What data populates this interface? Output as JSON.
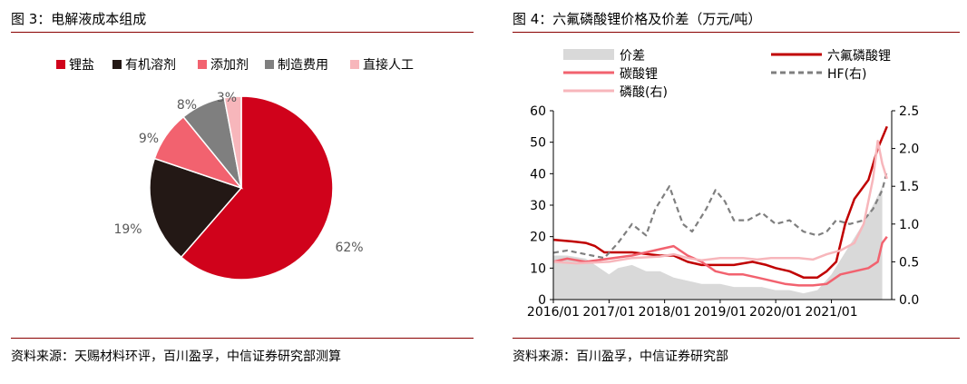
{
  "left": {
    "title": "图 3：电解液成本组成",
    "source": "资料来源：天赐材料环评，百川盈孚，中信证券研究部测算",
    "chart_data": {
      "type": "pie",
      "slices": [
        {
          "name": "锂盐",
          "value": 62,
          "label": "62%",
          "color": "#d0021b"
        },
        {
          "name": "有机溶剂",
          "value": 19,
          "label": "19%",
          "color": "#231815"
        },
        {
          "name": "添加剂",
          "value": 9,
          "label": "9%",
          "color": "#f2626f"
        },
        {
          "name": "制造费用",
          "value": 8,
          "label": "8%",
          "color": "#7f7f7f"
        },
        {
          "name": "直接人工",
          "value": 3,
          "label": "3%",
          "color": "#f7b6bb"
        }
      ],
      "legend_position": "top",
      "start": "top, clockwise"
    }
  },
  "right": {
    "title": "图 4：六氟磷酸锂价格及价差（万元/吨）",
    "source": "资料来源：百川盈孚，中信证券研究部",
    "chart_data": {
      "type": "line",
      "x_ticks": [
        "2016/01",
        "2017/01",
        "2018/01",
        "2019/01",
        "2020/01",
        "2021/01"
      ],
      "y_left": {
        "ticks": [
          "0",
          "10",
          "20",
          "30",
          "40",
          "50",
          "60"
        ],
        "lim": [
          0,
          60
        ]
      },
      "y_right": {
        "ticks": [
          "0.0",
          "0.5",
          "1.0",
          "1.5",
          "2.0",
          "2.5"
        ],
        "lim": [
          0,
          2.5
        ]
      },
      "legend": [
        "价差",
        "六氟磷酸锂",
        "碳酸锂",
        "HF(右)",
        "磷酸(右)"
      ],
      "series": [
        {
          "name": "价差",
          "kind": "area",
          "axis": "left",
          "color": "#d9d9d9",
          "points": [
            [
              "2016-01-01",
              14
            ],
            [
              "2016-04-01",
              14
            ],
            [
              "2016-08-01",
              13
            ],
            [
              "2017-01-01",
              8
            ],
            [
              "2017-03-01",
              10
            ],
            [
              "2017-06-01",
              11
            ],
            [
              "2017-09-01",
              9
            ],
            [
              "2017-12-01",
              9
            ],
            [
              "2018-03-01",
              7
            ],
            [
              "2018-06-01",
              6
            ],
            [
              "2018-09-01",
              5
            ],
            [
              "2019-01-01",
              5
            ],
            [
              "2019-04-01",
              4
            ],
            [
              "2019-07-01",
              4
            ],
            [
              "2019-10-01",
              4
            ],
            [
              "2020-01-01",
              3
            ],
            [
              "2020-04-01",
              3
            ],
            [
              "2020-07-01",
              2
            ],
            [
              "2020-10-01",
              3
            ],
            [
              "2021-01-01",
              8
            ],
            [
              "2021-04-01",
              15
            ],
            [
              "2021-07-01",
              22
            ],
            [
              "2021-10-01",
              30
            ],
            [
              "2021-12-01",
              36
            ]
          ]
        },
        {
          "name": "六氟磷酸锂",
          "kind": "line",
          "axis": "left",
          "color": "#c00000",
          "points": [
            [
              "2016-01-01",
              19
            ],
            [
              "2016-05-01",
              18.5
            ],
            [
              "2016-08-01",
              18
            ],
            [
              "2016-10-01",
              17
            ],
            [
              "2016-12-01",
              15
            ],
            [
              "2017-06-01",
              15
            ],
            [
              "2017-12-01",
              14
            ],
            [
              "2018-03-01",
              14
            ],
            [
              "2018-06-01",
              12
            ],
            [
              "2018-09-01",
              11
            ],
            [
              "2019-01-01",
              11
            ],
            [
              "2019-04-01",
              11
            ],
            [
              "2019-08-01",
              12
            ],
            [
              "2019-11-01",
              11
            ],
            [
              "2020-01-01",
              10
            ],
            [
              "2020-04-01",
              9
            ],
            [
              "2020-07-01",
              7
            ],
            [
              "2020-10-01",
              7
            ],
            [
              "2020-12-01",
              9
            ],
            [
              "2021-02-01",
              12
            ],
            [
              "2021-04-01",
              24
            ],
            [
              "2021-06-01",
              32
            ],
            [
              "2021-09-01",
              38
            ],
            [
              "2021-11-01",
              48
            ],
            [
              "2021-12-15",
              53
            ],
            [
              "2022-01-01",
              55
            ]
          ]
        },
        {
          "name": "碳酸锂",
          "kind": "line",
          "axis": "left",
          "color": "#f2626f",
          "points": [
            [
              "2016-01-01",
              12
            ],
            [
              "2016-04-01",
              13
            ],
            [
              "2016-08-01",
              12
            ],
            [
              "2017-01-01",
              13
            ],
            [
              "2017-06-01",
              14
            ],
            [
              "2017-09-01",
              15
            ],
            [
              "2017-12-01",
              16
            ],
            [
              "2018-03-01",
              17
            ],
            [
              "2018-06-01",
              14
            ],
            [
              "2018-09-01",
              12
            ],
            [
              "2018-12-01",
              9
            ],
            [
              "2019-03-01",
              8
            ],
            [
              "2019-06-01",
              8
            ],
            [
              "2019-09-01",
              7
            ],
            [
              "2019-12-01",
              6
            ],
            [
              "2020-03-01",
              5
            ],
            [
              "2020-06-01",
              4.5
            ],
            [
              "2020-09-01",
              4.5
            ],
            [
              "2020-12-01",
              5
            ],
            [
              "2021-03-01",
              8
            ],
            [
              "2021-06-01",
              9
            ],
            [
              "2021-09-01",
              10
            ],
            [
              "2021-11-01",
              12
            ],
            [
              "2021-12-01",
              18
            ],
            [
              "2022-01-01",
              20
            ]
          ]
        },
        {
          "name": "HF(右)",
          "kind": "dashed",
          "axis": "right",
          "color": "#7f7f7f",
          "points": [
            [
              "2016-01-01",
              0.62
            ],
            [
              "2016-04-01",
              0.65
            ],
            [
              "2016-08-01",
              0.6
            ],
            [
              "2016-12-01",
              0.55
            ],
            [
              "2017-03-01",
              0.75
            ],
            [
              "2017-06-01",
              1.0
            ],
            [
              "2017-09-01",
              0.85
            ],
            [
              "2017-11-01",
              1.2
            ],
            [
              "2018-02-01",
              1.5
            ],
            [
              "2018-05-01",
              1.0
            ],
            [
              "2018-07-01",
              0.9
            ],
            [
              "2018-10-01",
              1.2
            ],
            [
              "2018-12-01",
              1.45
            ],
            [
              "2019-02-01",
              1.3
            ],
            [
              "2019-04-01",
              1.05
            ],
            [
              "2019-07-01",
              1.05
            ],
            [
              "2019-10-01",
              1.15
            ],
            [
              "2020-01-01",
              1.0
            ],
            [
              "2020-04-01",
              1.05
            ],
            [
              "2020-07-01",
              0.9
            ],
            [
              "2020-10-01",
              0.85
            ],
            [
              "2020-12-01",
              0.9
            ],
            [
              "2021-02-01",
              1.05
            ],
            [
              "2021-05-01",
              1.0
            ],
            [
              "2021-08-01",
              1.05
            ],
            [
              "2021-10-01",
              1.2
            ],
            [
              "2021-12-01",
              1.45
            ],
            [
              "2022-01-01",
              1.7
            ]
          ]
        },
        {
          "name": "磷酸(右)",
          "kind": "line",
          "axis": "right",
          "color": "#f7b6bb",
          "points": [
            [
              "2016-01-01",
              0.5
            ],
            [
              "2016-06-01",
              0.48
            ],
            [
              "2017-01-01",
              0.5
            ],
            [
              "2017-06-01",
              0.55
            ],
            [
              "2017-12-01",
              0.57
            ],
            [
              "2018-03-01",
              0.6
            ],
            [
              "2018-06-01",
              0.55
            ],
            [
              "2018-09-01",
              0.52
            ],
            [
              "2019-01-01",
              0.55
            ],
            [
              "2019-06-01",
              0.55
            ],
            [
              "2019-09-01",
              0.53
            ],
            [
              "2019-12-01",
              0.55
            ],
            [
              "2020-06-01",
              0.55
            ],
            [
              "2020-09-01",
              0.53
            ],
            [
              "2020-12-01",
              0.6
            ],
            [
              "2021-03-01",
              0.65
            ],
            [
              "2021-06-01",
              0.75
            ],
            [
              "2021-08-01",
              1.0
            ],
            [
              "2021-10-01",
              1.6
            ],
            [
              "2021-11-01",
              2.1
            ],
            [
              "2021-12-01",
              1.8
            ],
            [
              "2022-01-01",
              1.6
            ]
          ]
        }
      ]
    }
  }
}
